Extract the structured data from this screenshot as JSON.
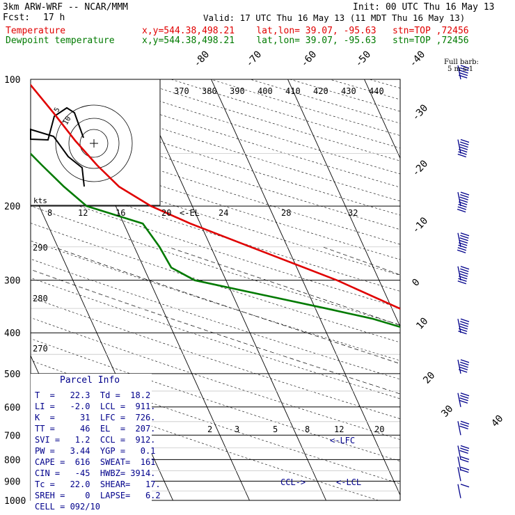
{
  "header": {
    "model": "3km ARW-WRF -- NCAR/MMM",
    "fcst_label": "Fcst:",
    "fcst_value": "17 h",
    "init": "Init: 00 UTC Thu 16 May 13",
    "valid": "Valid: 17 UTC Thu 16 May 13 (11 MDT Thu 16 May 13)",
    "temp_label": "Temperature",
    "dew_label": "Dewpoint temperature",
    "loc_temp": "x,y=544.38,498.21    lat,lon= 39.07, -95.63   stn=TOP ,72456",
    "loc_dew": "x,y=544.38,498.21    lat,lon= 39.07, -95.63   stn=TOP ,72456"
  },
  "wind_key": {
    "title": "Full barb:",
    "value": "5 m s-1"
  },
  "hodograph": {
    "units": "kts",
    "ring_labels": [
      "5",
      "10"
    ]
  },
  "parcel_info": {
    "title": "Parcel Info",
    "rows": [
      "T  =   22.3  Td =  18.2",
      "LI =   -2.0  LCL =  911.",
      "K  =     31  LFC =  726.",
      "TT =     46  EL  =  207.",
      "SVI =   1.2  CCL =  912.",
      "PW =   3.44  YGP =   0.1",
      "CAPE =  616  SWEAT=  161",
      "CIN =   -45  HWBZ= 3914.",
      "Tc =   22.0  SHEAR=   17.",
      "SREH =    0  LAPSE=   6.2",
      "CELL = 092/10"
    ]
  },
  "colors": {
    "temperature": "#e00000",
    "dewpoint": "#007a00",
    "text": "#000000",
    "wind": "#00008b"
  },
  "chart_data": {
    "type": "line",
    "title": "Skew-T log-P sounding",
    "y_axis": {
      "label": "",
      "scale": "log",
      "ticks": [
        100,
        200,
        300,
        400,
        500,
        600,
        700,
        800,
        900,
        1000
      ]
    },
    "isotherm_labels": [
      "-80",
      "-70",
      "-60",
      "-50",
      "-40",
      "-30",
      "-20",
      "-10",
      "0",
      "10",
      "20",
      "30",
      "40"
    ],
    "theta_labels": [
      "370",
      "380",
      "390",
      "400",
      "410",
      "420",
      "430",
      "440"
    ],
    "theta_lower_labels": [
      "290",
      "280",
      "270"
    ],
    "mixing_ratio_labels": [
      "2",
      "3",
      "5",
      "8",
      "12",
      "20"
    ],
    "theta_e_labels": [
      "8",
      "12",
      "16",
      "20",
      "24",
      "28",
      "32"
    ],
    "levels_labels": [
      "<-EL",
      "<-LFC",
      "<-LCL",
      "CCL->"
    ],
    "temperature_series": {
      "name": "Temperature",
      "p": [
        983,
        960,
        930,
        900,
        870,
        850,
        800,
        750,
        700,
        650,
        600,
        550,
        500,
        450,
        400,
        350,
        300,
        250,
        220,
        200,
        180,
        160,
        140,
        120,
        100
      ],
      "t": [
        25.0,
        22.3,
        20.6,
        19.5,
        17.4,
        16.8,
        12.3,
        7.8,
        3.0,
        -1.4,
        -5.8,
        -10.6,
        -14.8,
        -18.3,
        -23.2,
        -29.0,
        -35.5,
        -44.8,
        -51.3,
        -55.4,
        -58.4,
        -60.0,
        -61.4,
        -62.6,
        -64.2
      ]
    },
    "dewpoint_series": {
      "name": "Dewpoint temperature",
      "p": [
        983,
        960,
        930,
        900,
        870,
        850,
        800,
        750,
        700,
        650,
        600,
        550,
        500,
        470,
        450,
        400,
        370,
        350,
        300,
        280,
        250,
        220,
        200,
        180,
        160,
        140,
        120,
        100
      ],
      "t": [
        18.2,
        18.2,
        16.8,
        13.4,
        11.8,
        10.0,
        7.8,
        2.5,
        -2.0,
        -3.0,
        -11.2,
        -21.5,
        -28.9,
        -28.5,
        -29.3,
        -27.8,
        -33.2,
        -38.6,
        -54.1,
        -56.4,
        -56.7,
        -57.5,
        -63.8,
        -65.6,
        -67.2,
        -68.9,
        -70.2,
        -70.0
      ]
    },
    "wind_barbs": [
      {
        "p": 988,
        "dir_deg": 200,
        "speed_ms": 5
      },
      {
        "p": 900,
        "dir_deg": 210,
        "speed_ms": 10
      },
      {
        "p": 850,
        "dir_deg": 220,
        "speed_ms": 12
      },
      {
        "p": 800,
        "dir_deg": 235,
        "speed_ms": 15
      },
      {
        "p": 700,
        "dir_deg": 250,
        "speed_ms": 15
      },
      {
        "p": 600,
        "dir_deg": 255,
        "speed_ms": 20
      },
      {
        "p": 500,
        "dir_deg": 260,
        "speed_ms": 25
      },
      {
        "p": 400,
        "dir_deg": 265,
        "speed_ms": 30
      },
      {
        "p": 300,
        "dir_deg": 270,
        "speed_ms": 35
      },
      {
        "p": 250,
        "dir_deg": 270,
        "speed_ms": 40
      },
      {
        "p": 200,
        "dir_deg": 268,
        "speed_ms": 40
      },
      {
        "p": 150,
        "dir_deg": 265,
        "speed_ms": 35
      },
      {
        "p": 100,
        "dir_deg": 255,
        "speed_ms": 25
      }
    ]
  }
}
